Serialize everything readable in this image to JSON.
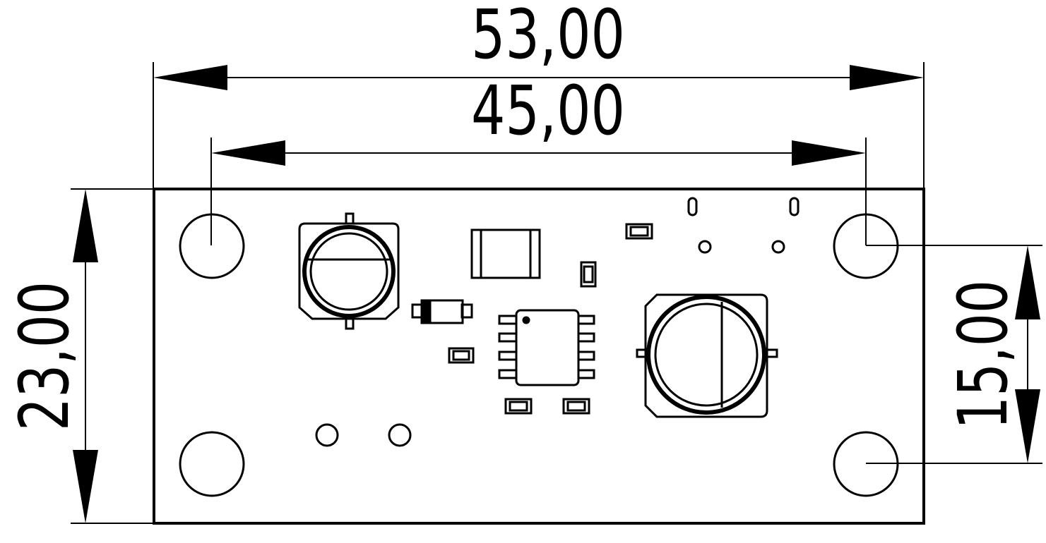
{
  "dimensions": {
    "overall_width": "53,00",
    "hole_spacing_x": "45,00",
    "overall_height": "23,00",
    "hole_spacing_y": "15,00"
  },
  "colors": {
    "line": "#000000",
    "background": "#ffffff"
  }
}
